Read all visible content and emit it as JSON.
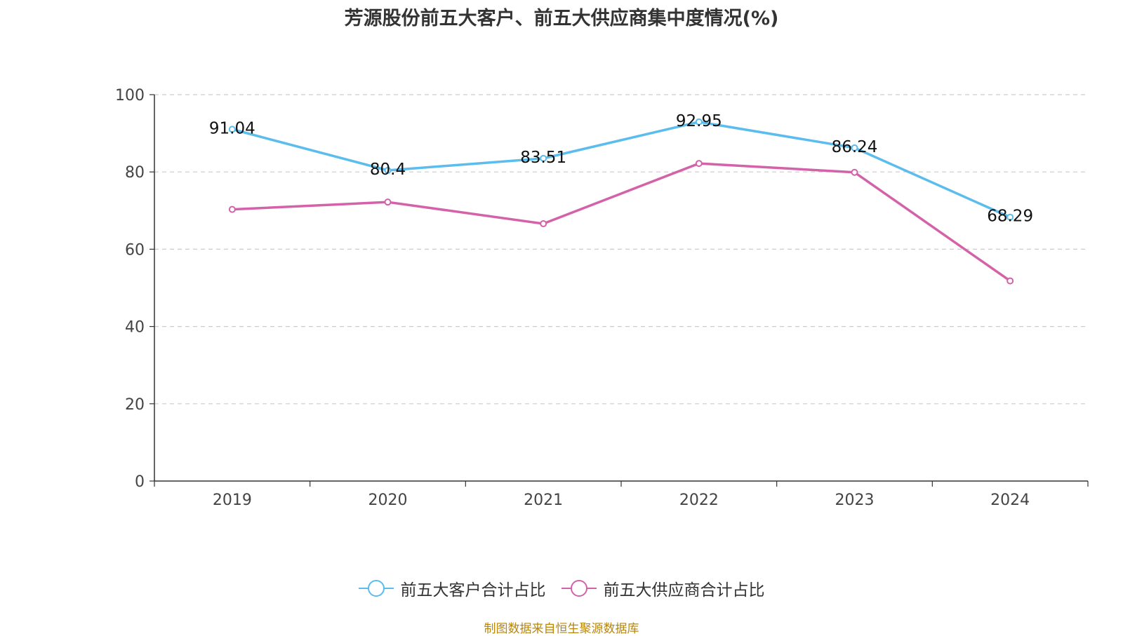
{
  "chart_data": {
    "type": "line",
    "title": "芳源股份前五大客户、前五大供应商集中度情况(%)",
    "categories": [
      "2019",
      "2020",
      "2021",
      "2022",
      "2023",
      "2024"
    ],
    "series": [
      {
        "name": "前五大客户合计占比",
        "color": "#5bbcee",
        "values": [
          91.04,
          80.4,
          83.51,
          92.95,
          86.24,
          68.29
        ],
        "show_labels": true
      },
      {
        "name": "前五大供应商合计占比",
        "color": "#d462a9",
        "values": [
          70.3,
          72.2,
          66.6,
          82.2,
          79.9,
          51.8
        ],
        "show_labels": false
      }
    ],
    "ylim": [
      0,
      100
    ],
    "yticks": [
      0,
      20,
      40,
      60,
      80,
      100
    ],
    "grid": true,
    "legend_position": "bottom"
  },
  "source": "制图数据来自恒生聚源数据库"
}
